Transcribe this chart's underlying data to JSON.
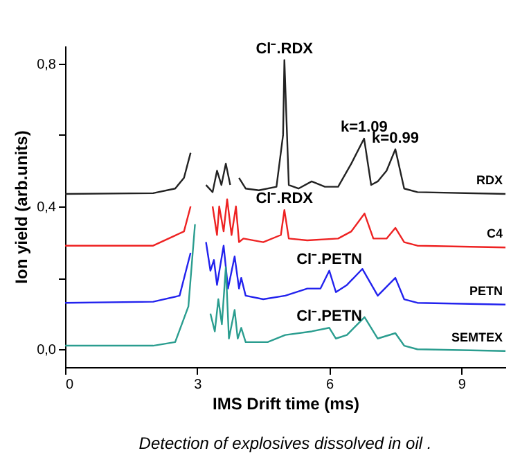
{
  "chart_data": {
    "type": "line",
    "xlabel": "IMS Drift time (ms)",
    "ylabel": "Ion yield (arb.units)",
    "xlim": [
      0,
      10
    ],
    "ylim": [
      -0.05,
      0.85
    ],
    "xticks": [
      0,
      3,
      6,
      9
    ],
    "yticks": [
      {
        "value": 0,
        "label": "0,0"
      },
      {
        "value": 0.2,
        "label": null
      },
      {
        "value": 0.4,
        "label": "0,4"
      },
      {
        "value": 0.6,
        "label": null
      },
      {
        "value": 0.8,
        "label": "0,8"
      }
    ],
    "grid": false,
    "legend": false,
    "marker": "none",
    "line_style": "solid",
    "series": [
      {
        "name": "RDX",
        "color": "#222222",
        "x": [
          0,
          2.0,
          2.5,
          2.7,
          2.85,
          2.95,
          3.1,
          3.2,
          3.35,
          3.45,
          3.55,
          3.65,
          3.75,
          3.85,
          3.95,
          4.1,
          4.4,
          4.8,
          4.95,
          4.98,
          5.08,
          5.3,
          5.6,
          5.9,
          6.2,
          6.5,
          6.79,
          6.95,
          7.1,
          7.3,
          7.5,
          7.7,
          8.0,
          10
        ],
        "values": [
          0.435,
          0.437,
          0.45,
          0.48,
          0.55,
          null,
          null,
          0.46,
          0.44,
          0.5,
          0.46,
          0.52,
          0.46,
          null,
          0.48,
          0.45,
          0.445,
          0.455,
          0.6,
          0.81,
          0.46,
          0.45,
          0.47,
          0.455,
          0.455,
          0.52,
          0.59,
          0.46,
          0.47,
          0.5,
          0.56,
          0.45,
          0.44,
          0.435
        ]
      },
      {
        "name": "C4",
        "color": "#ee2222",
        "x": [
          0,
          2.0,
          2.7,
          2.85,
          3.0,
          3.25,
          3.35,
          3.45,
          3.5,
          3.6,
          3.68,
          3.78,
          3.88,
          3.95,
          4.05,
          4.5,
          4.9,
          4.98,
          5.08,
          5.5,
          6.2,
          6.5,
          6.8,
          7.0,
          7.3,
          7.5,
          7.7,
          8.0,
          10
        ],
        "values": [
          0.29,
          0.29,
          0.33,
          0.4,
          null,
          null,
          0.4,
          0.32,
          0.4,
          0.33,
          0.42,
          0.32,
          0.4,
          0.3,
          0.31,
          0.3,
          0.32,
          0.39,
          0.31,
          0.305,
          0.31,
          0.33,
          0.38,
          0.31,
          0.31,
          0.34,
          0.3,
          0.29,
          0.285
        ]
      },
      {
        "name": "PETN",
        "color": "#2222ee",
        "x": [
          0,
          2.0,
          2.6,
          2.85,
          2.95,
          3.05,
          3.2,
          3.3,
          3.38,
          3.45,
          3.6,
          3.7,
          3.85,
          3.95,
          4.0,
          4.1,
          4.5,
          5.0,
          5.5,
          5.8,
          6.0,
          6.15,
          6.4,
          6.75,
          7.1,
          7.5,
          7.7,
          8.0,
          10
        ],
        "values": [
          0.13,
          0.133,
          0.15,
          0.27,
          null,
          null,
          0.3,
          0.22,
          0.25,
          0.18,
          0.29,
          0.17,
          0.26,
          0.17,
          0.2,
          0.15,
          0.14,
          0.15,
          0.17,
          0.17,
          0.22,
          0.16,
          0.18,
          0.225,
          0.15,
          0.2,
          0.14,
          0.13,
          0.125
        ]
      },
      {
        "name": "SEMTEX",
        "color": "#2a9d8f",
        "x": [
          0,
          2.0,
          2.5,
          2.8,
          2.95,
          3.05,
          3.15,
          3.3,
          3.4,
          3.48,
          3.56,
          3.65,
          3.72,
          3.85,
          3.92,
          4.0,
          4.1,
          4.6,
          5.0,
          5.6,
          6.0,
          6.15,
          6.4,
          6.8,
          7.1,
          7.5,
          7.7,
          8.0,
          10
        ],
        "values": [
          0.01,
          0.01,
          0.02,
          0.12,
          0.35,
          null,
          null,
          0.1,
          0.05,
          0.14,
          0.07,
          0.23,
          0.03,
          0.11,
          0.03,
          0.06,
          0.02,
          0.02,
          0.04,
          0.05,
          0.06,
          0.03,
          0.04,
          0.09,
          0.03,
          0.045,
          0.01,
          0.0,
          -0.005
        ]
      }
    ],
    "annotations": [
      {
        "text": "Cl⁻.RDX",
        "x": 4.98,
        "y": 0.81
      },
      {
        "text": "k=1.09",
        "x": 6.79,
        "y": 0.59
      },
      {
        "text": "k=0.99",
        "x": 7.5,
        "y": 0.56
      },
      {
        "text": "Cl⁻.RDX",
        "x": 4.98,
        "y": 0.39
      },
      {
        "text": "Cl⁻.PETN",
        "x": 6.0,
        "y": 0.22
      },
      {
        "text": "Cl⁻.PETN",
        "x": 6.0,
        "y": 0.06
      },
      "Detection of explosives dissolved in oil ."
    ]
  }
}
